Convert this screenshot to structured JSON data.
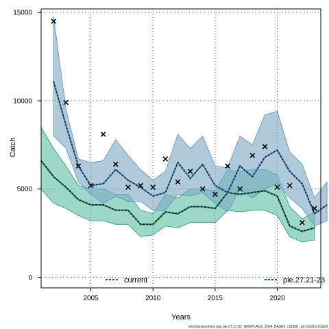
{
  "chart_data": {
    "type": "line",
    "xlabel": "Years",
    "ylabel": "Catch",
    "xlim": [
      2001,
      2023.5
    ],
    "ylim": [
      -600,
      15200
    ],
    "x_ticks": [
      2005,
      2010,
      2015,
      2020
    ],
    "y_ticks": [
      0,
      5000,
      10000,
      15000
    ],
    "grid": true,
    "years": [
      2001,
      2002,
      2003,
      2004,
      2005,
      2006,
      2007,
      2008,
      2009,
      2010,
      2011,
      2012,
      2013,
      2014,
      2015,
      2016,
      2017,
      2018,
      2019,
      2020,
      2021,
      2022,
      2023
    ],
    "series": [
      {
        "name": "current",
        "color": "#5b8fb0",
        "fill": "#7fa9c6",
        "start_year": 2002,
        "median": [
          11100,
          8600,
          6300,
          5200,
          5300,
          6100,
          5500,
          5100,
          4600,
          4800,
          6500,
          5600,
          6400,
          5200,
          4800,
          6300,
          5700,
          6800,
          7200,
          6000,
          5300,
          3600,
          4100
        ],
        "upper": [
          14800,
          9500,
          6700,
          6500,
          6600,
          7800,
          6900,
          6100,
          5500,
          6000,
          8100,
          7300,
          8000,
          6300,
          6200,
          8000,
          7500,
          9200,
          9400,
          7100,
          6400,
          4500,
          5400
        ],
        "lower": [
          8000,
          7300,
          5400,
          4700,
          4200,
          4600,
          4300,
          4300,
          3800,
          3800,
          4700,
          4600,
          4800,
          4200,
          3700,
          5000,
          4500,
          5000,
          5300,
          4500,
          3900,
          2900,
          3200
        ]
      },
      {
        "name": "ple.27.21-23",
        "color": "#2a8f7c",
        "fill": "#5fbfa9",
        "start_year": 2001,
        "median": [
          6600,
          5700,
          5100,
          4400,
          4100,
          4100,
          3800,
          3800,
          3000,
          3000,
          3700,
          3600,
          4000,
          4000,
          3900,
          4800,
          4700,
          4800,
          4900,
          4600,
          2900,
          2600,
          2800
        ],
        "upper": [
          8500,
          7300,
          6300,
          5200,
          5000,
          5000,
          4700,
          4700,
          3800,
          3600,
          4700,
          4500,
          5000,
          5000,
          4900,
          6100,
          6000,
          6100,
          6100,
          5800,
          4000,
          3300,
          3700
        ],
        "lower": [
          5000,
          4200,
          3900,
          3500,
          3200,
          3200,
          3000,
          3000,
          2300,
          2400,
          2900,
          2800,
          3100,
          3100,
          3100,
          3800,
          3700,
          3800,
          3800,
          3500,
          2300,
          2000,
          2100
        ]
      }
    ],
    "observed": {
      "marker": "x",
      "x": [
        2002,
        2003,
        2004,
        2005,
        2006,
        2007,
        2008,
        2009,
        2010,
        2011,
        2012,
        2013,
        2014,
        2015,
        2016,
        2017,
        2018,
        2019,
        2020,
        2021,
        2022,
        2023
      ],
      "y": [
        14500,
        9900,
        6300,
        5200,
        8100,
        6400,
        5100,
        5200,
        5100,
        6700,
        5400,
        6000,
        5000,
        4700,
        6300,
        5000,
        6900,
        7400,
        5100,
        5200,
        3100,
        3900
      ]
    },
    "legend_placement": "bottom"
  },
  "footer": "stockassessment.org, ple.27.21-32_WKBPLACE_2024_BASE2, r18380 , git:c9c81ec53a0d"
}
